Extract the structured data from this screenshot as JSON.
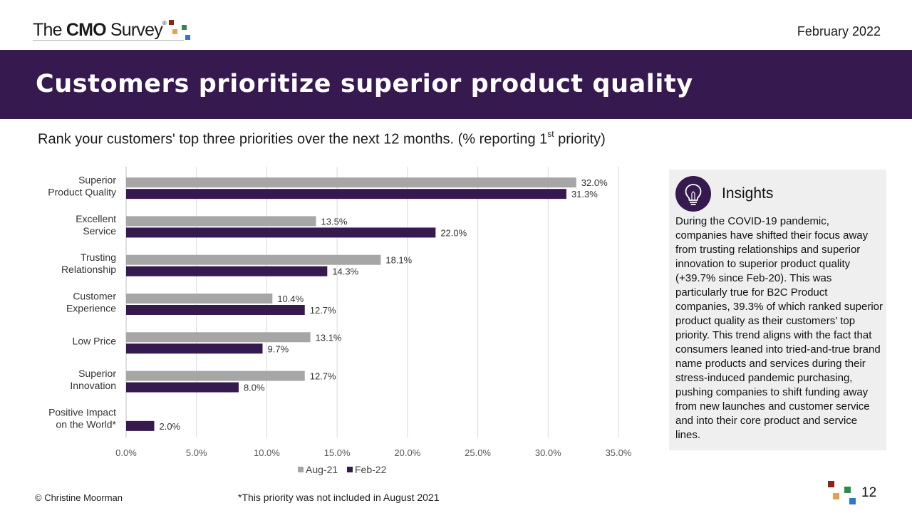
{
  "header": {
    "logo": {
      "pre": "The ",
      "bold": "CMO",
      "post": " Survey",
      "reg": "®"
    },
    "date": "February 2022"
  },
  "banner": {
    "title": "Customers prioritize superior product quality"
  },
  "question": {
    "text_before": "Rank your customers' top three priorities over the next 12 months. (% reporting 1",
    "superscript": "st",
    "text_after": " priority)"
  },
  "colors": {
    "brand_purple": "#36194f",
    "series_aug21": "#a6a6a6",
    "series_feb22": "#36194f",
    "logo_red": "#8b2318",
    "logo_orange": "#e8a04a",
    "logo_green": "#2e8b4a",
    "logo_blue": "#2f78c4"
  },
  "chart_data": {
    "type": "bar",
    "orientation": "horizontal",
    "categories": [
      [
        "Superior",
        "Product Quality"
      ],
      [
        "Excellent",
        "Service"
      ],
      [
        "Trusting",
        "Relationship"
      ],
      [
        "Customer",
        "Experience"
      ],
      [
        "Low Price"
      ],
      [
        "Superior",
        "Innovation"
      ],
      [
        "Positive Impact",
        "on the World*"
      ]
    ],
    "series": [
      {
        "name": "Aug-21",
        "values": [
          32.0,
          13.5,
          18.1,
          10.4,
          13.1,
          12.7,
          null
        ]
      },
      {
        "name": "Feb-22",
        "values": [
          31.3,
          22.0,
          14.3,
          12.7,
          9.7,
          8.0,
          2.0
        ]
      }
    ],
    "data_labels": [
      [
        "32.0%",
        "13.5%",
        "18.1%",
        "10.4%",
        "13.1%",
        "12.7%",
        null
      ],
      [
        "31.3%",
        "22.0%",
        "14.3%",
        "12.7%",
        "9.7%",
        "8.0%",
        "2.0%"
      ]
    ],
    "x_ticks": [
      "0.0%",
      "5.0%",
      "10.0%",
      "15.0%",
      "20.0%",
      "25.0%",
      "30.0%",
      "35.0%"
    ],
    "xlim": [
      0,
      35
    ],
    "grid": "vertical",
    "legend": "bottom-center",
    "title": "",
    "xlabel": "",
    "ylabel": ""
  },
  "insights": {
    "title": "Insights",
    "text": "During the COVID-19 pandemic, companies have shifted their focus away from trusting relationships and superior innovation to superior product quality (+39.7% since Feb-20). This was particularly true for B2C Product companies, 39.3% of which ranked superior product quality as their customers’ top priority. This trend aligns with the fact that consumers leaned into tried-and-true brand name products and services during their stress-induced pandemic purchasing, pushing companies to shift funding away from new launches and customer service and into their core product and service lines.",
    "icon": "lightbulb-icon"
  },
  "footer": {
    "copyright": "© Christine Moorman",
    "footnote": "*This priority was not included in August 2021",
    "page_number": "12"
  }
}
